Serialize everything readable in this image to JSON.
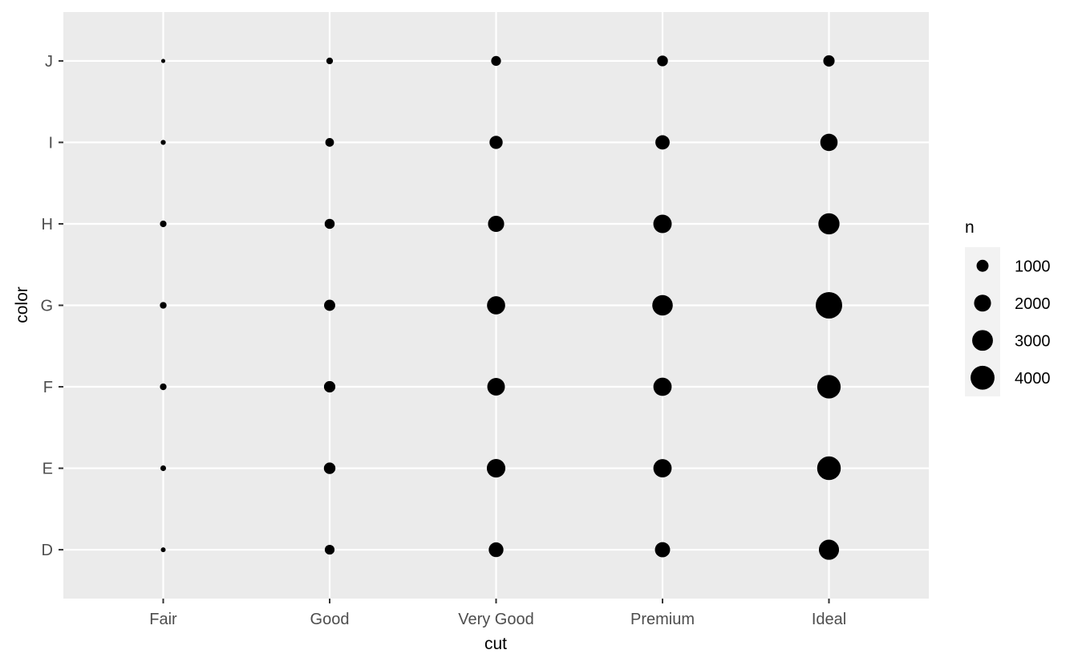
{
  "chart_data": {
    "type": "scatter",
    "xlabel": "cut",
    "ylabel": "color",
    "x_categories": [
      "Fair",
      "Good",
      "Very Good",
      "Premium",
      "Ideal"
    ],
    "y_categories": [
      "D",
      "E",
      "F",
      "G",
      "H",
      "I",
      "J"
    ],
    "size_variable": "n",
    "points": [
      {
        "x": "Fair",
        "y": "D",
        "n": 163
      },
      {
        "x": "Fair",
        "y": "E",
        "n": 224
      },
      {
        "x": "Fair",
        "y": "F",
        "n": 312
      },
      {
        "x": "Fair",
        "y": "G",
        "n": 314
      },
      {
        "x": "Fair",
        "y": "H",
        "n": 303
      },
      {
        "x": "Fair",
        "y": "I",
        "n": 175
      },
      {
        "x": "Fair",
        "y": "J",
        "n": 119
      },
      {
        "x": "Good",
        "y": "D",
        "n": 662
      },
      {
        "x": "Good",
        "y": "E",
        "n": 933
      },
      {
        "x": "Good",
        "y": "F",
        "n": 909
      },
      {
        "x": "Good",
        "y": "G",
        "n": 871
      },
      {
        "x": "Good",
        "y": "H",
        "n": 702
      },
      {
        "x": "Good",
        "y": "I",
        "n": 522
      },
      {
        "x": "Good",
        "y": "J",
        "n": 307
      },
      {
        "x": "Very Good",
        "y": "D",
        "n": 1513
      },
      {
        "x": "Very Good",
        "y": "E",
        "n": 2400
      },
      {
        "x": "Very Good",
        "y": "F",
        "n": 2164
      },
      {
        "x": "Very Good",
        "y": "G",
        "n": 2299
      },
      {
        "x": "Very Good",
        "y": "H",
        "n": 1824
      },
      {
        "x": "Very Good",
        "y": "I",
        "n": 1204
      },
      {
        "x": "Very Good",
        "y": "J",
        "n": 678
      },
      {
        "x": "Premium",
        "y": "D",
        "n": 1603
      },
      {
        "x": "Premium",
        "y": "E",
        "n": 2337
      },
      {
        "x": "Premium",
        "y": "F",
        "n": 2331
      },
      {
        "x": "Premium",
        "y": "G",
        "n": 2924
      },
      {
        "x": "Premium",
        "y": "H",
        "n": 2360
      },
      {
        "x": "Premium",
        "y": "I",
        "n": 1428
      },
      {
        "x": "Premium",
        "y": "J",
        "n": 808
      },
      {
        "x": "Ideal",
        "y": "D",
        "n": 2834
      },
      {
        "x": "Ideal",
        "y": "E",
        "n": 3903
      },
      {
        "x": "Ideal",
        "y": "F",
        "n": 3826
      },
      {
        "x": "Ideal",
        "y": "G",
        "n": 4884
      },
      {
        "x": "Ideal",
        "y": "H",
        "n": 3115
      },
      {
        "x": "Ideal",
        "y": "I",
        "n": 2093
      },
      {
        "x": "Ideal",
        "y": "J",
        "n": 896
      }
    ],
    "legend": {
      "title": "n",
      "position": "right",
      "breaks": [
        1000,
        2000,
        3000,
        4000
      ],
      "labels": [
        "1000",
        "2000",
        "3000",
        "4000"
      ]
    },
    "grid": true,
    "colors": {
      "panel_background": "#ebebeb",
      "grid_line": "#ffffff",
      "point": "#000000",
      "axis_text": "#4d4d4d",
      "tick": "#333333",
      "legend_key_background": "#f2f2f2"
    }
  }
}
